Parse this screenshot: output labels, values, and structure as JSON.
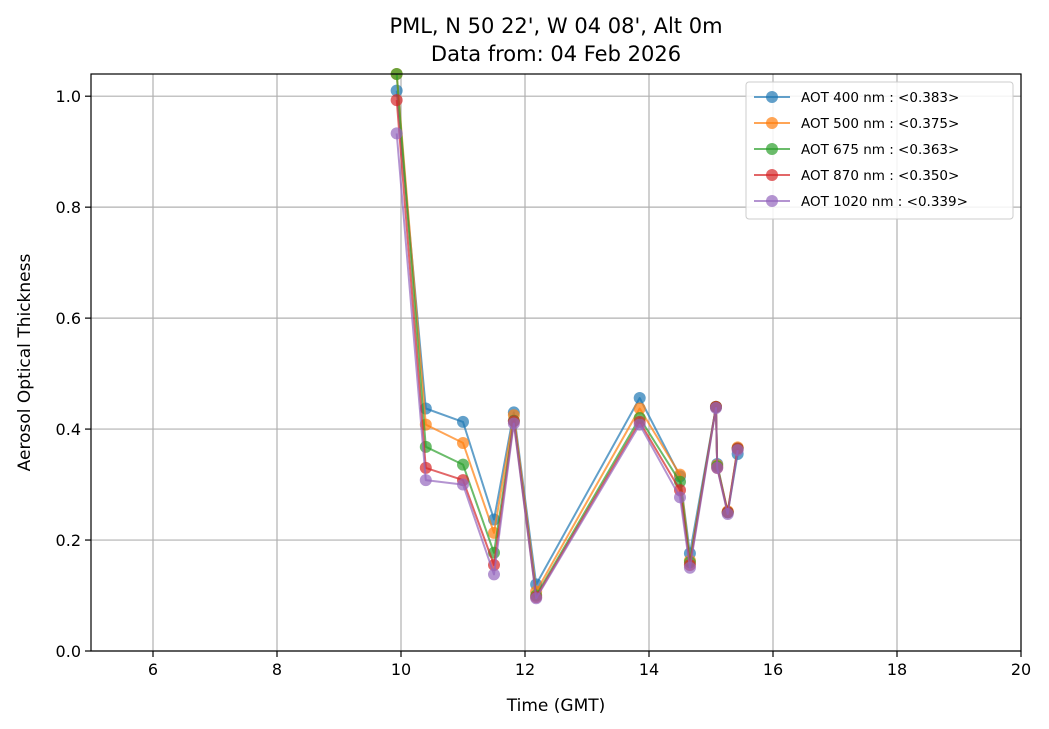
{
  "chart_data": {
    "type": "line",
    "title": "PML, N 50 22', W 04 08', Alt 0m",
    "subtitle": "Data from: 04 Feb 2026",
    "xlabel": "Time (GMT)",
    "ylabel": "Aerosol Optical Thickness",
    "xlim": [
      5,
      20
    ],
    "ylim": [
      0,
      1.04
    ],
    "xticks": [
      6,
      8,
      10,
      12,
      14,
      16,
      18,
      20
    ],
    "yticks": [
      0.0,
      0.2,
      0.4,
      0.6,
      0.8,
      1.0
    ],
    "grid": true,
    "legend_position": "top-right",
    "x": [
      9.93,
      10.4,
      11.0,
      11.5,
      11.82,
      12.18,
      13.85,
      14.5,
      14.66,
      15.08,
      15.1,
      15.27,
      15.43
    ],
    "series": [
      {
        "name": "AOT 400 nm : <0.383>",
        "color": "#1f77b4",
        "values": [
          1.01,
          0.437,
          0.413,
          0.237,
          0.43,
          0.12,
          0.456,
          0.315,
          0.176,
          0.44,
          0.337,
          0.25,
          0.355
        ]
      },
      {
        "name": "AOT 500 nm : <0.375>",
        "color": "#ff7f0e",
        "values": [
          1.04,
          0.408,
          0.375,
          0.213,
          0.425,
          0.107,
          0.437,
          0.318,
          0.163,
          0.44,
          0.335,
          0.252,
          0.367
        ]
      },
      {
        "name": "AOT 675 nm : <0.363>",
        "color": "#2ca02c",
        "values": [
          1.04,
          0.368,
          0.336,
          0.177,
          0.415,
          0.1,
          0.42,
          0.305,
          0.16,
          0.44,
          0.333,
          0.25,
          0.365
        ]
      },
      {
        "name": "AOT 870 nm : <0.350>",
        "color": "#d62728",
        "values": [
          0.993,
          0.33,
          0.308,
          0.155,
          0.414,
          0.097,
          0.413,
          0.29,
          0.155,
          0.44,
          0.33,
          0.25,
          0.365
        ]
      },
      {
        "name": "AOT 1020 nm : <0.339>",
        "color": "#9467bd",
        "values": [
          0.933,
          0.308,
          0.3,
          0.138,
          0.41,
          0.095,
          0.408,
          0.277,
          0.15,
          0.438,
          0.33,
          0.247,
          0.362
        ]
      }
    ]
  }
}
